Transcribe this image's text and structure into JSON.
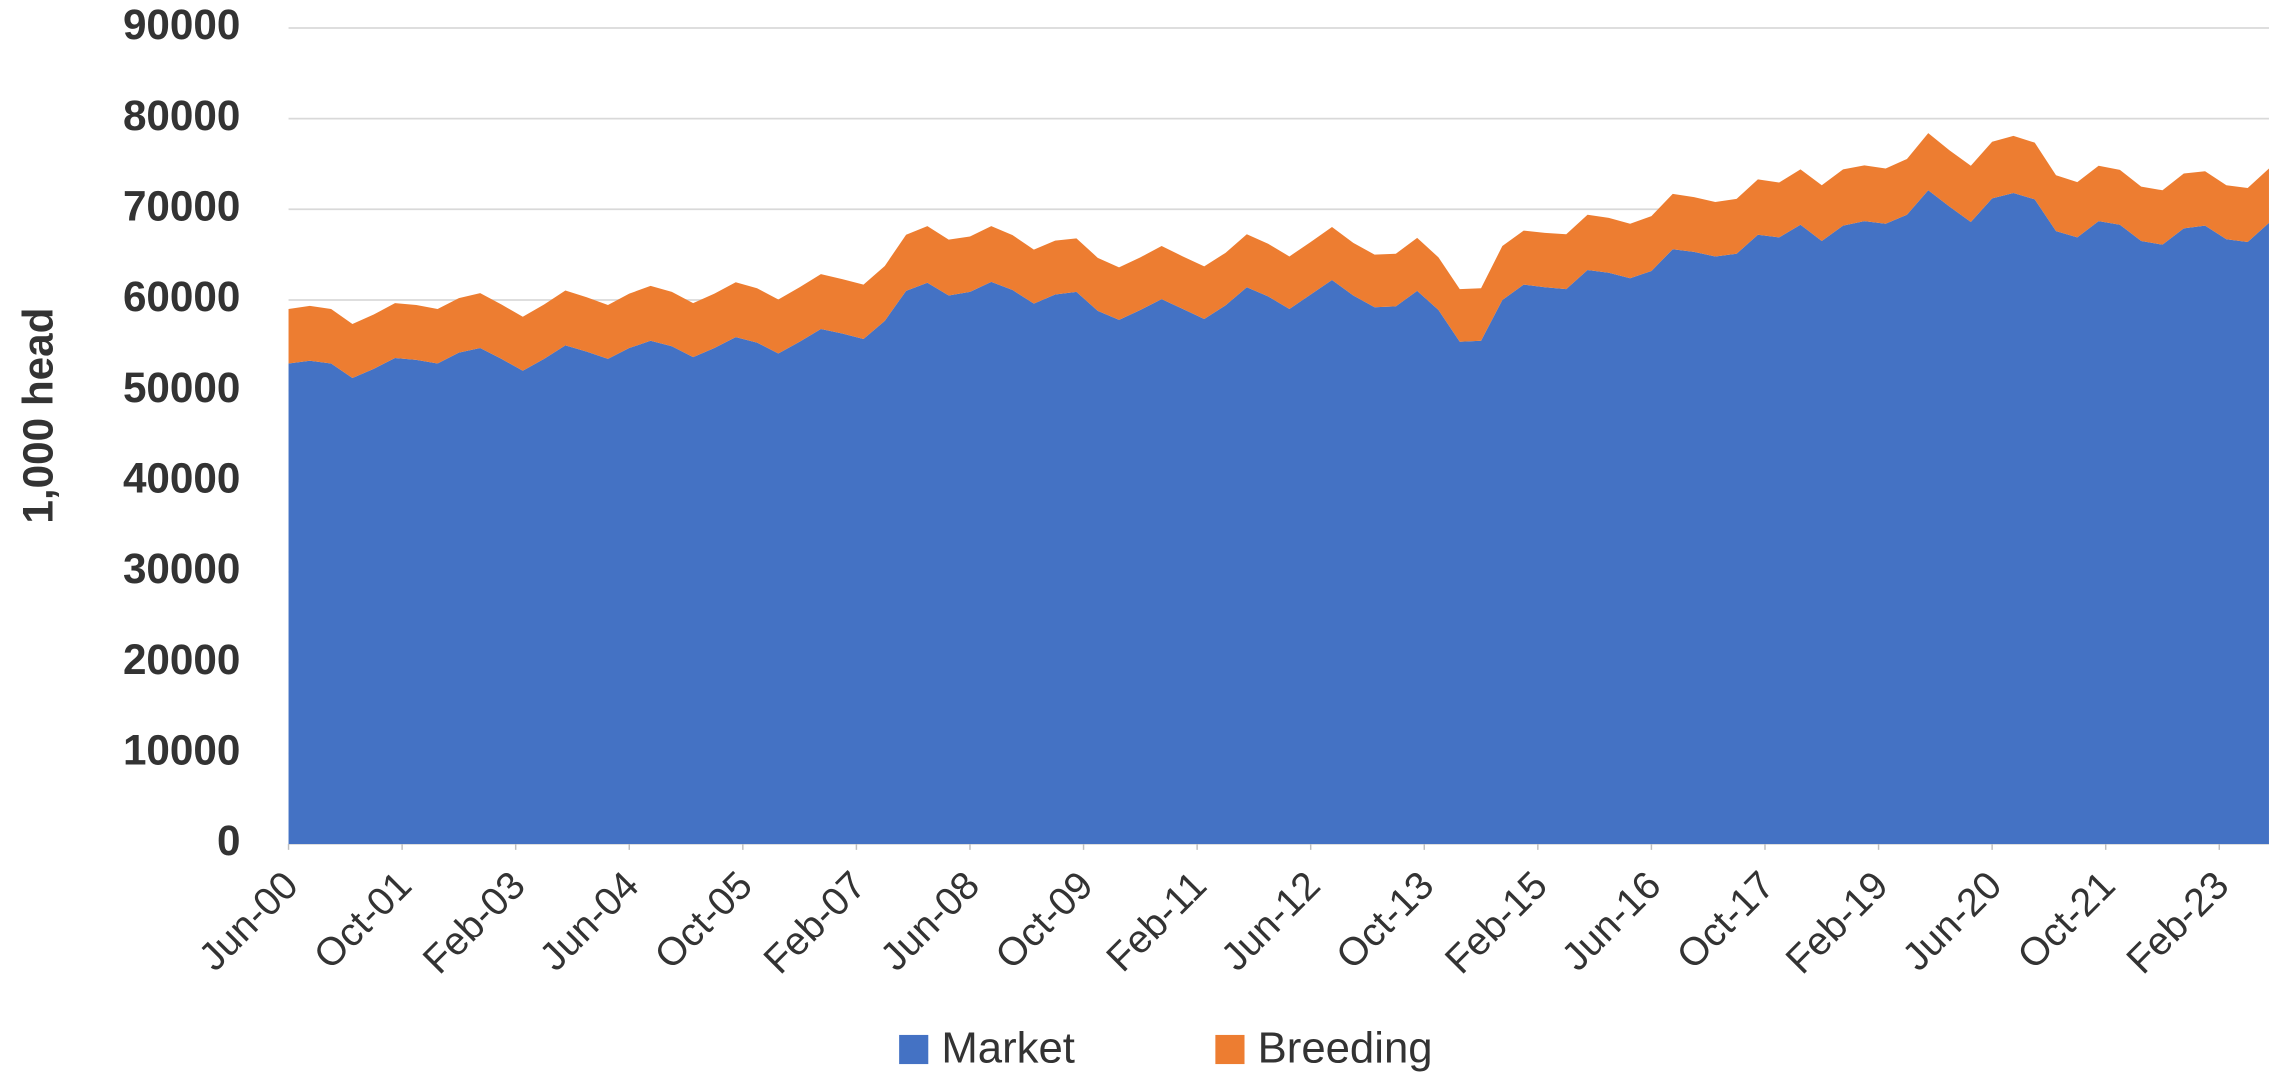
{
  "chart_data": {
    "type": "area",
    "y_label": "1,000 head",
    "x": [
      "2000-06",
      "2000-09",
      "2000-12",
      "2001-03",
      "2001-06",
      "2001-09",
      "2001-12",
      "2002-03",
      "2002-06",
      "2002-09",
      "2002-12",
      "2003-03",
      "2003-06",
      "2003-09",
      "2003-12",
      "2004-03",
      "2004-06",
      "2004-09",
      "2004-12",
      "2005-03",
      "2005-06",
      "2005-09",
      "2005-12",
      "2006-03",
      "2006-06",
      "2006-09",
      "2006-12",
      "2007-03",
      "2007-06",
      "2007-09",
      "2007-12",
      "2008-03",
      "2008-06",
      "2008-09",
      "2008-12",
      "2009-03",
      "2009-06",
      "2009-09",
      "2009-12",
      "2010-03",
      "2010-06",
      "2010-09",
      "2010-12",
      "2011-03",
      "2011-06",
      "2011-09",
      "2011-12",
      "2012-03",
      "2012-06",
      "2012-09",
      "2012-12",
      "2013-03",
      "2013-06",
      "2013-09",
      "2013-12",
      "2014-03",
      "2014-06",
      "2014-09",
      "2014-12",
      "2015-03",
      "2015-06",
      "2015-09",
      "2015-12",
      "2016-03",
      "2016-06",
      "2016-09",
      "2016-12",
      "2017-03",
      "2017-06",
      "2017-09",
      "2017-12",
      "2018-03",
      "2018-06",
      "2018-09",
      "2018-12",
      "2019-03",
      "2019-06",
      "2019-09",
      "2019-12",
      "2020-03",
      "2020-06",
      "2020-09",
      "2020-12",
      "2021-03",
      "2021-06",
      "2021-09",
      "2021-12",
      "2022-03",
      "2022-06",
      "2022-09",
      "2022-12",
      "2023-03",
      "2023-06",
      "2023-09"
    ],
    "series": [
      {
        "name": "Market",
        "color": "#4472c4",
        "values": [
          53000,
          53300,
          53000,
          51400,
          52400,
          53600,
          53400,
          53000,
          54200,
          54700,
          53500,
          52200,
          53500,
          55000,
          54300,
          53500,
          54700,
          55500,
          54900,
          53700,
          54700,
          55900,
          55300,
          54100,
          55400,
          56800,
          56300,
          55700,
          57700,
          61000,
          61900,
          60500,
          60900,
          62000,
          61100,
          59600,
          60600,
          60900,
          58800,
          57800,
          58900,
          60100,
          59000,
          57900,
          59400,
          61400,
          60400,
          59000,
          60600,
          62200,
          60500,
          59200,
          59300,
          61000,
          58900,
          55400,
          55500,
          60000,
          61700,
          61400,
          61200,
          63300,
          63000,
          62400,
          63200,
          65600,
          65300,
          64800,
          65100,
          67200,
          66900,
          68300,
          66500,
          68200,
          68700,
          68400,
          69400,
          72100,
          70300,
          68600,
          71200,
          71800,
          71100,
          67600,
          66900,
          68700,
          68300,
          66500,
          66100,
          67900,
          68200,
          66700,
          66400,
          68500
        ]
      },
      {
        "name": "Breeding",
        "color": "#ed7d31",
        "values": [
          6000,
          6050,
          6000,
          5950,
          6000,
          6050,
          6050,
          6000,
          6000,
          6050,
          6000,
          5950,
          6000,
          6050,
          6000,
          5950,
          6000,
          6050,
          6000,
          5950,
          6000,
          6050,
          6000,
          5950,
          6000,
          6050,
          6000,
          6000,
          6050,
          6200,
          6250,
          6150,
          6100,
          6150,
          6050,
          5950,
          5950,
          5900,
          5850,
          5800,
          5800,
          5850,
          5800,
          5800,
          5800,
          5850,
          5800,
          5800,
          5800,
          5850,
          5800,
          5800,
          5800,
          5850,
          5800,
          5800,
          5800,
          5950,
          5950,
          6000,
          6050,
          6100,
          6050,
          6000,
          6050,
          6100,
          6050,
          6000,
          6050,
          6100,
          6050,
          6100,
          6150,
          6200,
          6150,
          6100,
          6150,
          6300,
          6200,
          6200,
          6250,
          6300,
          6250,
          6150,
          6100,
          6100,
          6050,
          6000,
          6000,
          6050,
          6000,
          5950,
          5950,
          6000
        ]
      }
    ],
    "xticks": [
      {
        "value": "2000-06",
        "label": "Jun-00"
      },
      {
        "value": "2001-10",
        "label": "Oct-01"
      },
      {
        "value": "2003-02",
        "label": "Feb-03"
      },
      {
        "value": "2004-06",
        "label": "Jun-04"
      },
      {
        "value": "2005-10",
        "label": "Oct-05"
      },
      {
        "value": "2007-02",
        "label": "Feb-07"
      },
      {
        "value": "2008-06",
        "label": "Jun-08"
      },
      {
        "value": "2009-10",
        "label": "Oct-09"
      },
      {
        "value": "2011-02",
        "label": "Feb-11"
      },
      {
        "value": "2012-06",
        "label": "Jun-12"
      },
      {
        "value": "2013-10",
        "label": "Oct-13"
      },
      {
        "value": "2015-02",
        "label": "Feb-15"
      },
      {
        "value": "2016-06",
        "label": "Jun-16"
      },
      {
        "value": "2017-10",
        "label": "Oct-17"
      },
      {
        "value": "2019-02",
        "label": "Feb-19"
      },
      {
        "value": "2020-06",
        "label": "Jun-20"
      },
      {
        "value": "2021-10",
        "label": "Oct-21"
      },
      {
        "value": "2023-02",
        "label": "Feb-23"
      }
    ],
    "ylim": [
      0,
      90000
    ],
    "yticks": [
      0,
      10000,
      20000,
      30000,
      40000,
      50000,
      60000,
      70000,
      80000,
      90000
    ],
    "grid": true,
    "stacked": true,
    "legend": "bottom"
  }
}
